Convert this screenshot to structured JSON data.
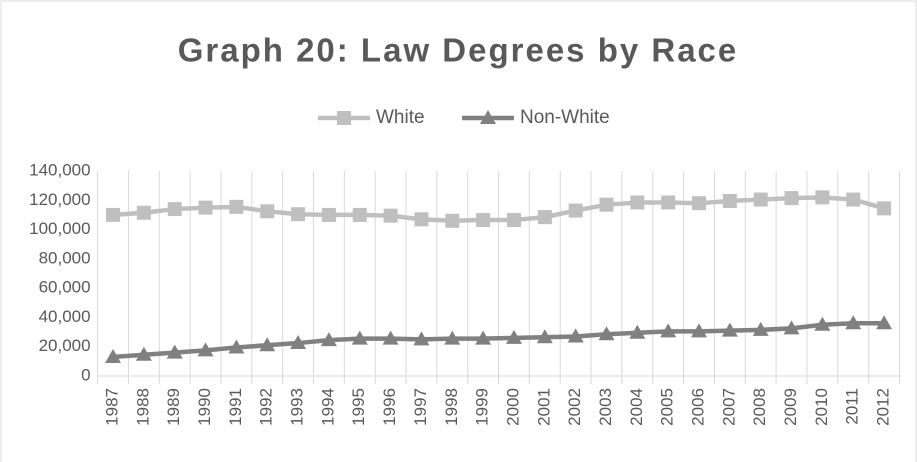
{
  "chart_data": {
    "type": "line",
    "title": "Graph 20: Law Degrees by Race",
    "categories": [
      "1987",
      "1988",
      "1989",
      "1990",
      "1991",
      "1992",
      "1993",
      "1994",
      "1995",
      "1996",
      "1997",
      "1998",
      "1999",
      "2000",
      "2001",
      "2002",
      "2003",
      "2004",
      "2005",
      "2006",
      "2007",
      "2008",
      "2009",
      "2010",
      "2011",
      "2012"
    ],
    "series": [
      {
        "name": "White",
        "color": "#bfbfbf",
        "marker": "square",
        "values": [
          110000,
          111500,
          114000,
          115000,
          115500,
          112500,
          110500,
          110000,
          110000,
          109500,
          107000,
          106000,
          106500,
          106500,
          108500,
          113000,
          117000,
          118500,
          118500,
          118000,
          119500,
          120500,
          121500,
          122000,
          120500,
          114500
        ]
      },
      {
        "name": "Non-White",
        "color": "#808080",
        "marker": "triangle",
        "values": [
          13000,
          14500,
          16000,
          17500,
          19500,
          21000,
          22500,
          24500,
          25500,
          25500,
          25000,
          25500,
          25500,
          26000,
          26500,
          27000,
          28500,
          29500,
          30500,
          30500,
          31000,
          31500,
          32500,
          35000,
          36000,
          36000
        ]
      }
    ],
    "ylim": [
      0,
      140000
    ],
    "yticks": [
      0,
      {
        "value": 20000,
        "label": "20,000"
      },
      {
        "value": 40000,
        "label": "40,000"
      },
      {
        "value": 60000,
        "label": "60,000"
      },
      {
        "value": 80000,
        "label": "80,000"
      },
      {
        "value": 100000,
        "label": "100,000"
      },
      {
        "value": 120000,
        "label": "120,000"
      },
      {
        "value": 140000,
        "label": "140,000"
      }
    ],
    "legend": "top",
    "grid": "vertical"
  }
}
